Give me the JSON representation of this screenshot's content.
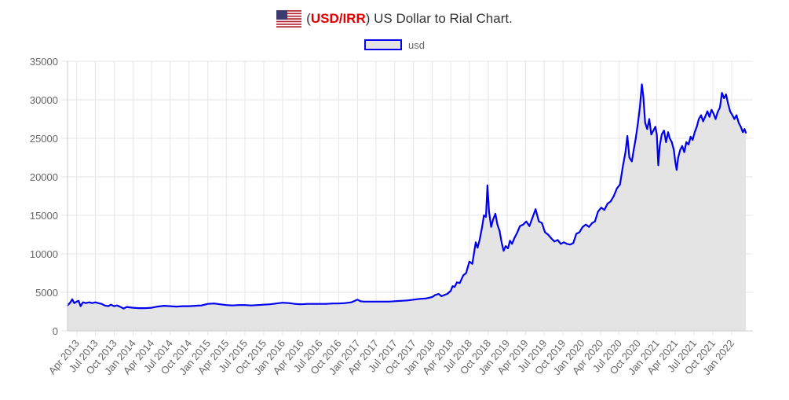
{
  "title": {
    "open_paren": "(",
    "code": "USD/IRR",
    "close_paren": ")",
    "text": "US Dollar to Rial Chart."
  },
  "legend": {
    "label": "usd"
  },
  "colors": {
    "line": "#0000ee",
    "fill": "#e4e4e4",
    "grid": "#e6e6e6",
    "code": "#e00000"
  },
  "chart_data": {
    "type": "area",
    "title": "(USD/IRR) US Dollar to Rial Chart.",
    "xlabel": "",
    "ylabel": "",
    "ylim": [
      0,
      35000
    ],
    "xlim": [
      "2013-02-15",
      "2022-04-15"
    ],
    "grid": true,
    "legend_position": "top-center",
    "y_ticks": [
      0,
      5000,
      10000,
      15000,
      20000,
      25000,
      30000,
      35000
    ],
    "x_ticks": [
      {
        "label": "Apr 2013",
        "date": "2013-04-01"
      },
      {
        "label": "Jul 2013",
        "date": "2013-07-01"
      },
      {
        "label": "Oct 2013",
        "date": "2013-10-01"
      },
      {
        "label": "Jan 2014",
        "date": "2014-01-01"
      },
      {
        "label": "Apr 2014",
        "date": "2014-04-01"
      },
      {
        "label": "Jul 2014",
        "date": "2014-07-01"
      },
      {
        "label": "Oct 2014",
        "date": "2014-10-01"
      },
      {
        "label": "Jan 2015",
        "date": "2015-01-01"
      },
      {
        "label": "Apr 2015",
        "date": "2015-04-01"
      },
      {
        "label": "Jul 2015",
        "date": "2015-07-01"
      },
      {
        "label": "Oct 2015",
        "date": "2015-10-01"
      },
      {
        "label": "Jan 2016",
        "date": "2016-01-01"
      },
      {
        "label": "Apr 2016",
        "date": "2016-04-01"
      },
      {
        "label": "Jul 2016",
        "date": "2016-07-01"
      },
      {
        "label": "Oct 2016",
        "date": "2016-10-01"
      },
      {
        "label": "Jan 2017",
        "date": "2017-01-01"
      },
      {
        "label": "Apr 2017",
        "date": "2017-04-01"
      },
      {
        "label": "Jul 2017",
        "date": "2017-07-01"
      },
      {
        "label": "Oct 2017",
        "date": "2017-10-01"
      },
      {
        "label": "Jan 2018",
        "date": "2018-01-01"
      },
      {
        "label": "Apr 2018",
        "date": "2018-04-01"
      },
      {
        "label": "Jul 2018",
        "date": "2018-07-01"
      },
      {
        "label": "Oct 2018",
        "date": "2018-10-01"
      },
      {
        "label": "Jan 2019",
        "date": "2019-01-01"
      },
      {
        "label": "Apr 2019",
        "date": "2019-04-01"
      },
      {
        "label": "Jul 2019",
        "date": "2019-07-01"
      },
      {
        "label": "Oct 2019",
        "date": "2019-10-01"
      },
      {
        "label": "Jan 2020",
        "date": "2020-01-01"
      },
      {
        "label": "Apr 2020",
        "date": "2020-04-01"
      },
      {
        "label": "Jul 2020",
        "date": "2020-07-01"
      },
      {
        "label": "Oct 2020",
        "date": "2020-10-01"
      },
      {
        "label": "Jan 2021",
        "date": "2021-01-01"
      },
      {
        "label": "Apr 2021",
        "date": "2021-04-01"
      },
      {
        "label": "Jul 2021",
        "date": "2021-07-01"
      },
      {
        "label": "Oct 2021",
        "date": "2021-10-01"
      },
      {
        "label": "Jan 2022",
        "date": "2022-01-01"
      }
    ],
    "series": [
      {
        "name": "usd",
        "points": [
          [
            "2013-02-15",
            3300
          ],
          [
            "2013-03-01",
            3700
          ],
          [
            "2013-03-10",
            4100
          ],
          [
            "2013-03-20",
            3600
          ],
          [
            "2013-04-01",
            3800
          ],
          [
            "2013-04-10",
            3900
          ],
          [
            "2013-04-20",
            3200
          ],
          [
            "2013-05-01",
            3700
          ],
          [
            "2013-05-15",
            3600
          ],
          [
            "2013-06-01",
            3700
          ],
          [
            "2013-06-15",
            3600
          ],
          [
            "2013-07-01",
            3700
          ],
          [
            "2013-07-15",
            3600
          ],
          [
            "2013-08-01",
            3500
          ],
          [
            "2013-08-15",
            3300
          ],
          [
            "2013-09-01",
            3200
          ],
          [
            "2013-09-15",
            3400
          ],
          [
            "2013-10-01",
            3200
          ],
          [
            "2013-10-15",
            3300
          ],
          [
            "2013-11-01",
            3100
          ],
          [
            "2013-11-15",
            2900
          ],
          [
            "2013-12-01",
            3100
          ],
          [
            "2014-01-01",
            3000
          ],
          [
            "2014-02-01",
            2950
          ],
          [
            "2014-03-01",
            2950
          ],
          [
            "2014-04-01",
            3000
          ],
          [
            "2014-05-01",
            3150
          ],
          [
            "2014-06-01",
            3250
          ],
          [
            "2014-07-01",
            3200
          ],
          [
            "2014-08-01",
            3150
          ],
          [
            "2014-09-01",
            3200
          ],
          [
            "2014-10-01",
            3200
          ],
          [
            "2014-11-01",
            3250
          ],
          [
            "2014-12-01",
            3300
          ],
          [
            "2015-01-01",
            3500
          ],
          [
            "2015-02-01",
            3550
          ],
          [
            "2015-03-01",
            3450
          ],
          [
            "2015-04-01",
            3350
          ],
          [
            "2015-05-01",
            3300
          ],
          [
            "2015-06-01",
            3350
          ],
          [
            "2015-07-01",
            3350
          ],
          [
            "2015-08-01",
            3300
          ],
          [
            "2015-09-01",
            3350
          ],
          [
            "2015-10-01",
            3400
          ],
          [
            "2015-11-01",
            3450
          ],
          [
            "2015-12-01",
            3550
          ],
          [
            "2016-01-01",
            3650
          ],
          [
            "2016-02-01",
            3600
          ],
          [
            "2016-03-01",
            3500
          ],
          [
            "2016-04-01",
            3450
          ],
          [
            "2016-05-01",
            3500
          ],
          [
            "2016-06-01",
            3500
          ],
          [
            "2016-07-01",
            3500
          ],
          [
            "2016-08-01",
            3500
          ],
          [
            "2016-09-01",
            3550
          ],
          [
            "2016-10-01",
            3550
          ],
          [
            "2016-11-01",
            3600
          ],
          [
            "2016-12-01",
            3700
          ],
          [
            "2017-01-01",
            4050
          ],
          [
            "2017-01-15",
            3850
          ],
          [
            "2017-02-01",
            3800
          ],
          [
            "2017-03-01",
            3800
          ],
          [
            "2017-04-01",
            3800
          ],
          [
            "2017-05-01",
            3800
          ],
          [
            "2017-06-01",
            3800
          ],
          [
            "2017-07-01",
            3850
          ],
          [
            "2017-08-01",
            3900
          ],
          [
            "2017-09-01",
            3950
          ],
          [
            "2017-10-01",
            4050
          ],
          [
            "2017-11-01",
            4150
          ],
          [
            "2017-12-01",
            4200
          ],
          [
            "2018-01-01",
            4400
          ],
          [
            "2018-01-15",
            4650
          ],
          [
            "2018-02-01",
            4800
          ],
          [
            "2018-02-15",
            4500
          ],
          [
            "2018-03-01",
            4650
          ],
          [
            "2018-03-15",
            4800
          ],
          [
            "2018-04-01",
            5200
          ],
          [
            "2018-04-10",
            5800
          ],
          [
            "2018-04-20",
            5700
          ],
          [
            "2018-05-01",
            6300
          ],
          [
            "2018-05-15",
            6200
          ],
          [
            "2018-06-01",
            7200
          ],
          [
            "2018-06-15",
            7500
          ],
          [
            "2018-07-01",
            9000
          ],
          [
            "2018-07-15",
            8700
          ],
          [
            "2018-08-01",
            11500
          ],
          [
            "2018-08-10",
            10800
          ],
          [
            "2018-08-20",
            11800
          ],
          [
            "2018-09-01",
            13500
          ],
          [
            "2018-09-10",
            15000
          ],
          [
            "2018-09-20",
            14800
          ],
          [
            "2018-09-27",
            18900
          ],
          [
            "2018-10-05",
            15500
          ],
          [
            "2018-10-15",
            13500
          ],
          [
            "2018-10-25",
            14500
          ],
          [
            "2018-11-05",
            15200
          ],
          [
            "2018-11-15",
            13800
          ],
          [
            "2018-11-25",
            13000
          ],
          [
            "2018-12-05",
            11500
          ],
          [
            "2018-12-15",
            10400
          ],
          [
            "2018-12-25",
            11000
          ],
          [
            "2019-01-05",
            10700
          ],
          [
            "2019-01-15",
            11700
          ],
          [
            "2019-01-25",
            11300
          ],
          [
            "2019-02-05",
            12000
          ],
          [
            "2019-02-20",
            12800
          ],
          [
            "2019-03-05",
            13600
          ],
          [
            "2019-03-20",
            13800
          ],
          [
            "2019-04-05",
            14200
          ],
          [
            "2019-04-20",
            13600
          ],
          [
            "2019-05-05",
            14700
          ],
          [
            "2019-05-20",
            15800
          ],
          [
            "2019-06-05",
            14200
          ],
          [
            "2019-06-20",
            14000
          ],
          [
            "2019-07-05",
            12800
          ],
          [
            "2019-07-20",
            12500
          ],
          [
            "2019-08-05",
            12000
          ],
          [
            "2019-08-20",
            11600
          ],
          [
            "2019-09-05",
            11800
          ],
          [
            "2019-09-20",
            11300
          ],
          [
            "2019-10-05",
            11500
          ],
          [
            "2019-10-20",
            11300
          ],
          [
            "2019-11-05",
            11200
          ],
          [
            "2019-11-20",
            11400
          ],
          [
            "2019-12-05",
            12600
          ],
          [
            "2019-12-20",
            12800
          ],
          [
            "2020-01-05",
            13500
          ],
          [
            "2020-01-20",
            13800
          ],
          [
            "2020-02-05",
            13500
          ],
          [
            "2020-02-20",
            14000
          ],
          [
            "2020-03-05",
            14200
          ],
          [
            "2020-03-20",
            15500
          ],
          [
            "2020-04-05",
            16000
          ],
          [
            "2020-04-20",
            15700
          ],
          [
            "2020-05-05",
            16500
          ],
          [
            "2020-05-20",
            16800
          ],
          [
            "2020-06-05",
            17500
          ],
          [
            "2020-06-20",
            18500
          ],
          [
            "2020-07-05",
            19000
          ],
          [
            "2020-07-20",
            21500
          ],
          [
            "2020-08-01",
            23200
          ],
          [
            "2020-08-10",
            25300
          ],
          [
            "2020-08-20",
            22500
          ],
          [
            "2020-09-01",
            22000
          ],
          [
            "2020-09-10",
            23500
          ],
          [
            "2020-09-20",
            25000
          ],
          [
            "2020-10-01",
            27000
          ],
          [
            "2020-10-10",
            29000
          ],
          [
            "2020-10-20",
            32000
          ],
          [
            "2020-10-27",
            30500
          ],
          [
            "2020-11-05",
            27000
          ],
          [
            "2020-11-15",
            26200
          ],
          [
            "2020-11-25",
            27500
          ],
          [
            "2020-12-05",
            25500
          ],
          [
            "2020-12-15",
            26000
          ],
          [
            "2020-12-25",
            26500
          ],
          [
            "2021-01-01",
            25500
          ],
          [
            "2021-01-08",
            21500
          ],
          [
            "2021-01-15",
            24000
          ],
          [
            "2021-01-25",
            25500
          ],
          [
            "2021-02-05",
            26000
          ],
          [
            "2021-02-15",
            24500
          ],
          [
            "2021-02-25",
            25800
          ],
          [
            "2021-03-05",
            25000
          ],
          [
            "2021-03-15",
            24500
          ],
          [
            "2021-03-25",
            23500
          ],
          [
            "2021-04-01",
            22000
          ],
          [
            "2021-04-08",
            20900
          ],
          [
            "2021-04-15",
            22500
          ],
          [
            "2021-04-25",
            23500
          ],
          [
            "2021-05-05",
            24000
          ],
          [
            "2021-05-15",
            23200
          ],
          [
            "2021-05-25",
            24500
          ],
          [
            "2021-06-05",
            24200
          ],
          [
            "2021-06-15",
            25200
          ],
          [
            "2021-06-25",
            24800
          ],
          [
            "2021-07-05",
            25800
          ],
          [
            "2021-07-15",
            26500
          ],
          [
            "2021-07-25",
            27500
          ],
          [
            "2021-08-05",
            28000
          ],
          [
            "2021-08-15",
            27200
          ],
          [
            "2021-08-25",
            27800
          ],
          [
            "2021-09-05",
            28500
          ],
          [
            "2021-09-15",
            27800
          ],
          [
            "2021-09-25",
            28700
          ],
          [
            "2021-10-05",
            28200
          ],
          [
            "2021-10-15",
            27500
          ],
          [
            "2021-10-25",
            28400
          ],
          [
            "2021-11-05",
            29000
          ],
          [
            "2021-11-15",
            30900
          ],
          [
            "2021-11-25",
            30200
          ],
          [
            "2021-12-05",
            30700
          ],
          [
            "2021-12-15",
            29500
          ],
          [
            "2021-12-25",
            28500
          ],
          [
            "2022-01-05",
            28000
          ],
          [
            "2022-01-15",
            27500
          ],
          [
            "2022-01-25",
            28000
          ],
          [
            "2022-02-05",
            27000
          ],
          [
            "2022-02-15",
            26500
          ],
          [
            "2022-02-25",
            25800
          ],
          [
            "2022-03-05",
            26200
          ],
          [
            "2022-03-12",
            25700
          ]
        ]
      }
    ]
  }
}
